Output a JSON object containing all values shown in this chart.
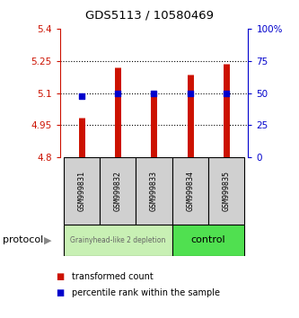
{
  "title": "GDS5113 / 10580469",
  "samples": [
    "GSM999831",
    "GSM999832",
    "GSM999833",
    "GSM999834",
    "GSM999835"
  ],
  "red_values": [
    4.985,
    5.22,
    5.105,
    5.185,
    5.235
  ],
  "blue_values": [
    5.085,
    5.1,
    5.1,
    5.1,
    5.1
  ],
  "red_base": 4.8,
  "ylim": [
    4.8,
    5.4
  ],
  "y_ticks_left": [
    4.8,
    4.95,
    5.1,
    5.25,
    5.4
  ],
  "y_ticks_right": [
    0,
    25,
    50,
    75,
    100
  ],
  "y_right_labels": [
    "0",
    "25",
    "50",
    "75",
    "100%"
  ],
  "dotted_lines": [
    4.95,
    5.1,
    5.25
  ],
  "group1_samples": [
    0,
    1,
    2
  ],
  "group2_samples": [
    3,
    4
  ],
  "group1_label": "Grainyhead-like 2 depletion",
  "group2_label": "control",
  "group1_color": "#c8f0b4",
  "group2_color": "#50e050",
  "protocol_label": "protocol",
  "legend_red": "transformed count",
  "legend_blue": "percentile rank within the sample",
  "bar_color": "#cc1100",
  "dot_color": "#0000cc",
  "tick_color_left": "#cc1100",
  "tick_color_right": "#0000cc",
  "sample_box_color": "#d0d0d0"
}
